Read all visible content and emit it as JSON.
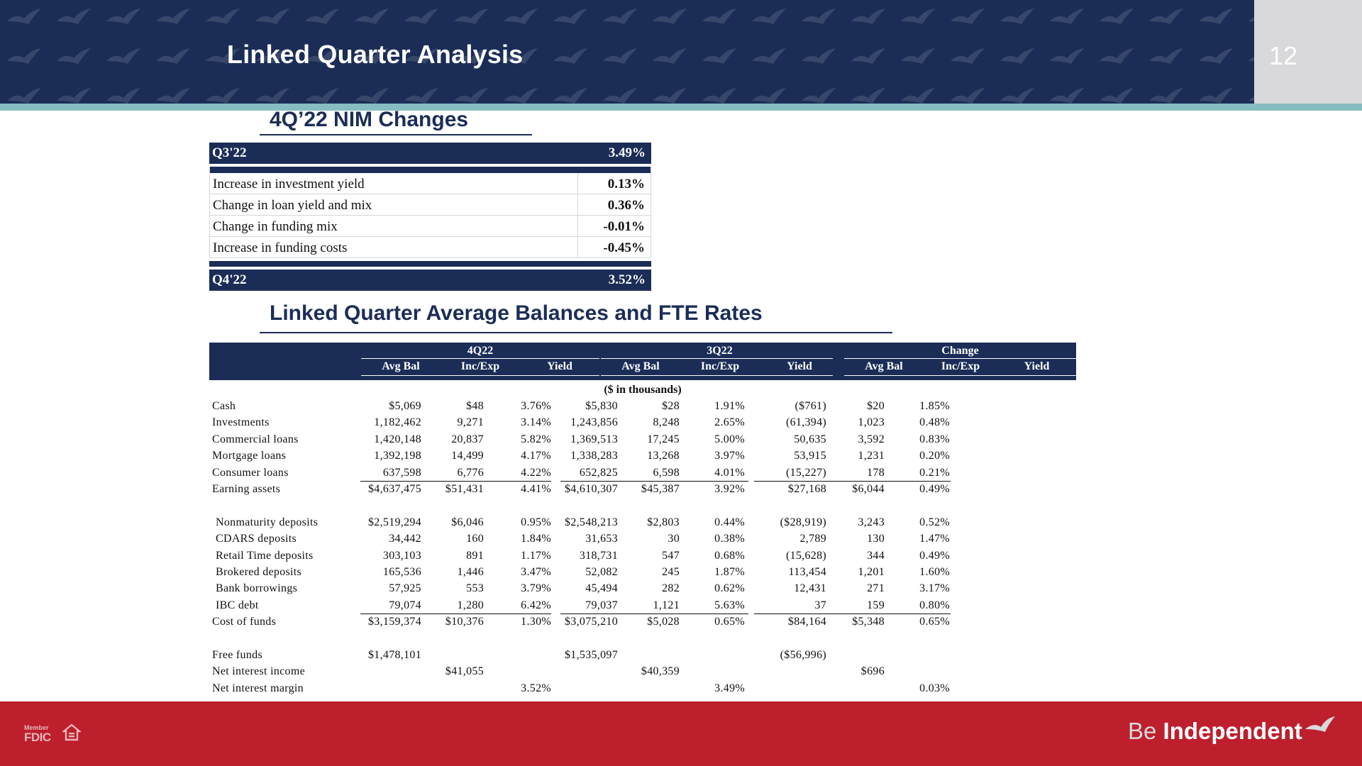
{
  "header": {
    "title": "Linked Quarter Analysis",
    "page_number": "12"
  },
  "nim": {
    "heading": "4Q’22 NIM Changes",
    "start": {
      "label": "Q3'22",
      "value": "3.49%"
    },
    "rows": [
      {
        "label": "Increase in investment yield",
        "value": "0.13%"
      },
      {
        "label": "Change in loan yield and mix",
        "value": "0.36%"
      },
      {
        "label": "Change in funding mix",
        "value": "-0.01%"
      },
      {
        "label": "Increase in funding costs",
        "value": "-0.45%"
      }
    ],
    "end": {
      "label": "Q4'22",
      "value": "3.52%"
    }
  },
  "balances": {
    "heading": "Linked Quarter Average Balances and FTE Rates",
    "groups": [
      "4Q22",
      "3Q22",
      "Change"
    ],
    "subheaders": [
      "Avg Bal",
      "Inc/Exp",
      "Yield",
      "Avg Bal",
      "Inc/Exp",
      "Yield",
      "Avg Bal",
      "Inc/Exp",
      "Yield"
    ],
    "units": "($ in thousands)",
    "rows": [
      {
        "label": "Cash",
        "vals": [
          "$5,069",
          "$48",
          "3.76%",
          "$5,830",
          "$28",
          "1.91%",
          "($761)",
          "$20",
          "1.85%"
        ]
      },
      {
        "label": "Investments",
        "vals": [
          "1,182,462",
          "9,271",
          "3.14%",
          "1,243,856",
          "8,248",
          "2.65%",
          "(61,394)",
          "1,023",
          "0.48%"
        ]
      },
      {
        "label": "Commercial loans",
        "vals": [
          "1,420,148",
          "20,837",
          "5.82%",
          "1,369,513",
          "17,245",
          "5.00%",
          "50,635",
          "3,592",
          "0.83%"
        ]
      },
      {
        "label": "Mortgage loans",
        "vals": [
          "1,392,198",
          "14,499",
          "4.17%",
          "1,338,283",
          "13,268",
          "3.97%",
          "53,915",
          "1,231",
          "0.20%"
        ]
      },
      {
        "label": "Consumer loans",
        "vals": [
          "637,598",
          "6,776",
          "4.22%",
          "652,825",
          "6,598",
          "4.01%",
          "(15,227)",
          "178",
          "0.21%"
        ]
      },
      {
        "label": "Earning assets",
        "vals": [
          "$4,637,475",
          "$51,431",
          "4.41%",
          "$4,610,307",
          "$45,387",
          "3.92%",
          "$27,168",
          "$6,044",
          "0.49%"
        ]
      },
      {
        "label": "Nonmaturity deposits",
        "vals": [
          "$2,519,294",
          "$6,046",
          "0.95%",
          "$2,548,213",
          "$2,803",
          "0.44%",
          "($28,919)",
          "3,243",
          "0.52%"
        ]
      },
      {
        "label": "CDARS deposits",
        "vals": [
          "34,442",
          "160",
          "1.84%",
          "31,653",
          "30",
          "0.38%",
          "2,789",
          "130",
          "1.47%"
        ]
      },
      {
        "label": "Retail Time deposits",
        "vals": [
          "303,103",
          "891",
          "1.17%",
          "318,731",
          "547",
          "0.68%",
          "(15,628)",
          "344",
          "0.49%"
        ]
      },
      {
        "label": "Brokered deposits",
        "vals": [
          "165,536",
          "1,446",
          "3.47%",
          "52,082",
          "245",
          "1.87%",
          "113,454",
          "1,201",
          "1.60%"
        ]
      },
      {
        "label": "Bank borrowings",
        "vals": [
          "57,925",
          "553",
          "3.79%",
          "45,494",
          "282",
          "0.62%",
          "12,431",
          "271",
          "3.17%"
        ]
      },
      {
        "label": "IBC debt",
        "vals": [
          "79,074",
          "1,280",
          "6.42%",
          "79,037",
          "1,121",
          "5.63%",
          "37",
          "159",
          "0.80%"
        ]
      },
      {
        "label": "Cost of funds",
        "vals": [
          "$3,159,374",
          "$10,376",
          "1.30%",
          "$3,075,210",
          "$5,028",
          "0.65%",
          "$84,164",
          "$5,348",
          "0.65%"
        ]
      },
      {
        "label": "Free funds",
        "vals": [
          "$1,478,101",
          "",
          "",
          "$1,535,097",
          "",
          "",
          "($56,996)",
          "",
          ""
        ]
      },
      {
        "label": "Net interest income",
        "vals": [
          "",
          "$41,055",
          "",
          "",
          "$40,359",
          "",
          "",
          "$696",
          ""
        ]
      },
      {
        "label": "Net interest margin",
        "vals": [
          "",
          "",
          "3.52%",
          "",
          "",
          "3.49%",
          "",
          "",
          "0.03%"
        ]
      }
    ]
  },
  "footer": {
    "fdic_member": "Member",
    "fdic": "FDIC",
    "brand_be": "Be",
    "brand_independent": "Independent",
    "logo_icon": "bird-icon",
    "housing_icon": "equal-housing-lender-icon"
  },
  "colors": {
    "navy": "#1b2d57",
    "teal": "#86bdc2",
    "red": "#be1f2d",
    "gray": "#d9d9db"
  }
}
